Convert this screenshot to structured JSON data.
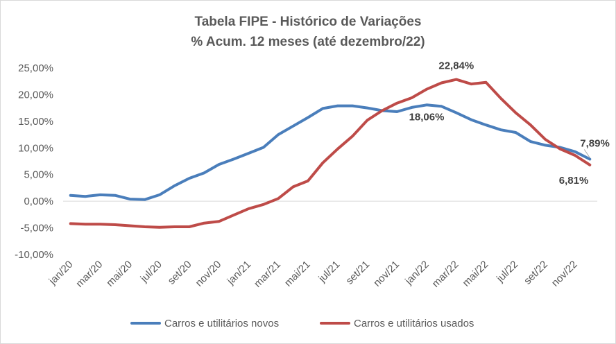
{
  "chart_data": {
    "type": "line",
    "title": "Tabela FIPE - Histórico de Variações",
    "subtitle": "% Acum. 12 meses (até dezembro/22)",
    "x": [
      "jan/20",
      "fev/20",
      "mar/20",
      "abr/20",
      "mai/20",
      "jun/20",
      "jul/20",
      "ago/20",
      "set/20",
      "out/20",
      "nov/20",
      "dez/20",
      "jan/21",
      "fev/21",
      "mar/21",
      "abr/21",
      "mai/21",
      "jun/21",
      "jul/21",
      "ago/21",
      "set/21",
      "out/21",
      "nov/21",
      "dez/21",
      "jan/22",
      "fev/22",
      "mar/22",
      "abr/22",
      "mai/22",
      "jun/22",
      "jul/22",
      "ago/22",
      "set/22",
      "out/22",
      "nov/22",
      "dez/22"
    ],
    "x_tick_labels": [
      "jan/20",
      "mar/20",
      "mai/20",
      "jul/20",
      "set/20",
      "nov/20",
      "jan/21",
      "mar/21",
      "mai/21",
      "jul/21",
      "set/21",
      "nov/21",
      "jan/22",
      "mar/22",
      "mai/22",
      "jul/22",
      "set/22",
      "nov/22"
    ],
    "y_tick_labels": [
      "25,00%",
      "20,00%",
      "15,00%",
      "10,00%",
      "5,00%",
      "0,00%",
      "-5,00%",
      "-10,00%"
    ],
    "ylim": [
      -10,
      25
    ],
    "yticks": [
      25,
      20,
      15,
      10,
      5,
      0,
      -5,
      -10
    ],
    "grid": false,
    "legend_position": "bottom",
    "series": [
      {
        "name": "Carros e utilitários novos",
        "color": "#4a7ebb",
        "values": [
          1.1,
          0.9,
          1.2,
          1.1,
          0.4,
          0.3,
          1.2,
          2.9,
          4.3,
          5.3,
          6.9,
          7.9,
          9.0,
          10.1,
          12.5,
          14.1,
          15.7,
          17.4,
          17.9,
          17.9,
          17.5,
          17.0,
          16.8,
          17.6,
          18.06,
          17.8,
          16.6,
          15.3,
          14.3,
          13.4,
          12.9,
          11.2,
          10.5,
          10.1,
          9.3,
          7.89
        ]
      },
      {
        "name": "Carros e utilitários usados",
        "color": "#be4b48",
        "values": [
          -4.2,
          -4.3,
          -4.3,
          -4.4,
          -4.6,
          -4.8,
          -4.9,
          -4.8,
          -4.8,
          -4.1,
          -3.8,
          -2.6,
          -1.4,
          -0.6,
          0.5,
          2.7,
          3.8,
          7.2,
          9.8,
          12.2,
          15.2,
          17.0,
          18.4,
          19.4,
          21.0,
          22.2,
          22.84,
          22.0,
          22.3,
          19.3,
          16.6,
          14.3,
          11.6,
          9.8,
          8.6,
          6.81
        ]
      }
    ],
    "annotations": [
      {
        "series": 1,
        "index": 26,
        "text": "22,84%"
      },
      {
        "series": 0,
        "index": 24,
        "text": "18,06%"
      },
      {
        "series": 0,
        "index": 35,
        "text": "7,89%"
      },
      {
        "series": 1,
        "index": 35,
        "text": "6,81%"
      }
    ]
  }
}
